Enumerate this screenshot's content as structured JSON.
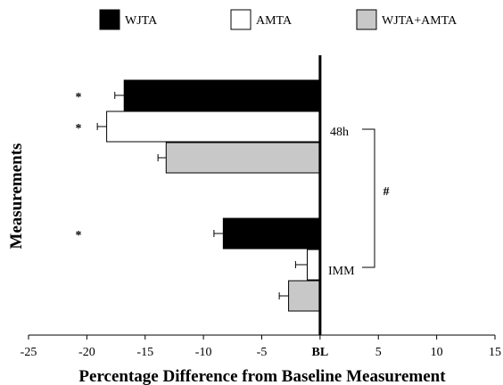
{
  "chart_data": {
    "type": "bar",
    "orientation": "horizontal",
    "xlabel": "Percentage Difference from Baseline Measurement",
    "ylabel": "Measurements",
    "xlim": [
      -25,
      15
    ],
    "xticks": [
      {
        "value": -25,
        "label": "-25"
      },
      {
        "value": -20,
        "label": "-20"
      },
      {
        "value": -15,
        "label": "-15"
      },
      {
        "value": -10,
        "label": "-10"
      },
      {
        "value": -5,
        "label": "-5"
      },
      {
        "value": 0,
        "label": "BL"
      },
      {
        "value": 5,
        "label": "5"
      },
      {
        "value": 10,
        "label": "10"
      },
      {
        "value": 15,
        "label": "15"
      }
    ],
    "legend_position": "top",
    "series": [
      {
        "name": "WJTA",
        "color": "#000000"
      },
      {
        "name": "AMTA",
        "color": "#ffffff"
      },
      {
        "name": "WJTA+AMTA",
        "color": "#c8c8c8"
      }
    ],
    "groups": [
      {
        "label": "48h",
        "bars": [
          {
            "series": "WJTA",
            "value": -16.8,
            "error": 0.8,
            "marker": "*"
          },
          {
            "series": "AMTA",
            "value": -18.3,
            "error": 0.8,
            "marker": "*"
          },
          {
            "series": "WJTA+AMTA",
            "value": -13.2,
            "error": 0.7,
            "marker": ""
          }
        ]
      },
      {
        "label": "IMM",
        "bars": [
          {
            "series": "WJTA",
            "value": -8.3,
            "error": 0.8,
            "marker": "*"
          },
          {
            "series": "AMTA",
            "value": -1.1,
            "error": 1.0,
            "marker": ""
          },
          {
            "series": "WJTA+AMTA",
            "value": -2.7,
            "error": 0.8,
            "marker": ""
          }
        ]
      }
    ],
    "comparison_marker": "#"
  }
}
